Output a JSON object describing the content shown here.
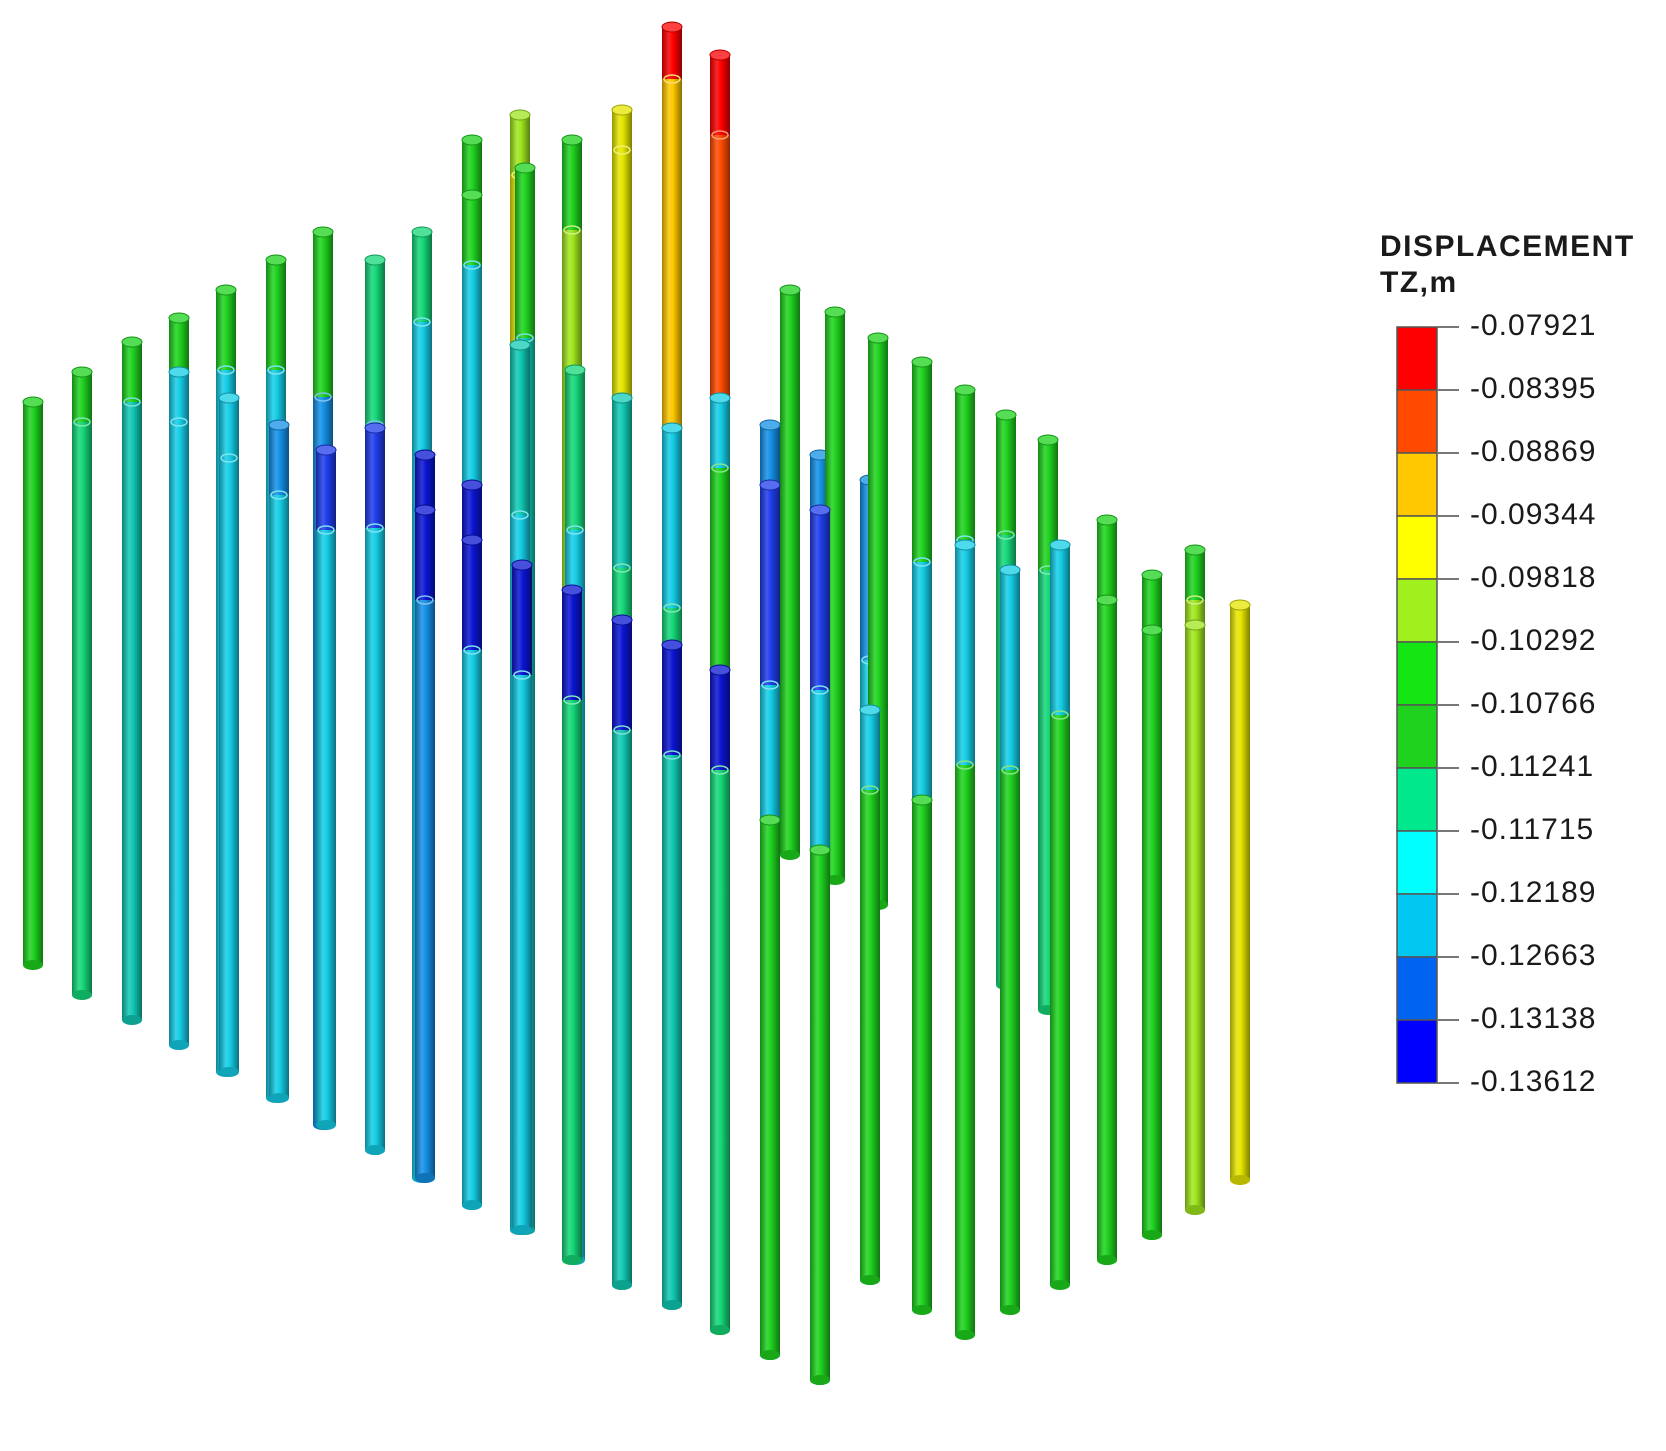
{
  "legend": {
    "title_line1": "DISPLACEMENT",
    "title_line2": "TZ,m",
    "values": [
      "-0.07921",
      "-0.08395",
      "-0.08869",
      "-0.09344",
      "-0.09818",
      "-0.10292",
      "-0.10766",
      "-0.11241",
      "-0.11715",
      "-0.12189",
      "-0.12663",
      "-0.13138",
      "-0.13612"
    ],
    "colors": [
      "#ff0000",
      "#ff4a00",
      "#ffc800",
      "#ffff00",
      "#a0f01e",
      "#14e614",
      "#1ed21e",
      "#00e88c",
      "#00ffff",
      "#00c8f0",
      "#0064f0",
      "#0000ff"
    ]
  },
  "color_scale": {
    "red": "#ff0000",
    "red_orange": "#ff4a00",
    "orange": "#ffc800",
    "yellow": "#e6e600",
    "yellow_green": "#a0e61e",
    "green": "#1ed21e",
    "sea_green": "#14d778",
    "cyan_green": "#10c9b4",
    "cyan": "#14cde6",
    "light_blue": "#1490e6",
    "blue": "#1e3ceb",
    "deep_blue": "#0a14d2"
  }
}
